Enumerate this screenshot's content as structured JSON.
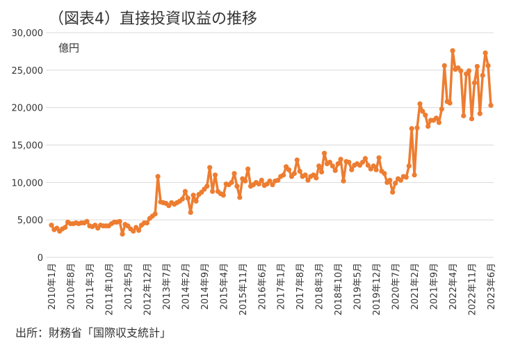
{
  "chart_data": {
    "type": "line",
    "title": "（図表4）直接投資収益の推移",
    "y_axis_label": "億円",
    "source": "出所：財務省「国際収支統計」",
    "categories": [
      "2010年1月",
      null,
      null,
      null,
      null,
      null,
      null,
      "2010年8月",
      null,
      null,
      null,
      null,
      null,
      null,
      "2011年3月",
      null,
      null,
      null,
      null,
      null,
      null,
      "2011年10月",
      null,
      null,
      null,
      null,
      null,
      null,
      "2012年5月",
      null,
      null,
      null,
      null,
      null,
      null,
      "2012年12月",
      null,
      null,
      null,
      null,
      null,
      null,
      "2013年7月",
      null,
      null,
      null,
      null,
      null,
      null,
      "2014年2月",
      null,
      null,
      null,
      null,
      null,
      null,
      "2014年9月",
      null,
      null,
      null,
      null,
      null,
      null,
      "2015年4月",
      null,
      null,
      null,
      null,
      null,
      null,
      "2015年11月",
      null,
      null,
      null,
      null,
      null,
      null,
      "2016年6月",
      null,
      null,
      null,
      null,
      null,
      null,
      "2017年1月",
      null,
      null,
      null,
      null,
      null,
      null,
      "2017年8月",
      null,
      null,
      null,
      null,
      null,
      null,
      "2018年3月",
      null,
      null,
      null,
      null,
      null,
      null,
      "2018年10月",
      null,
      null,
      null,
      null,
      null,
      null,
      "2019年5月",
      null,
      null,
      null,
      null,
      null,
      null,
      "2019年12月",
      null,
      null,
      null,
      null,
      null,
      null,
      "2020年7月",
      null,
      null,
      null,
      null,
      null,
      null,
      "2021年2月",
      null,
      null,
      null,
      null,
      null,
      null,
      "2021年9月",
      null,
      null,
      null,
      null,
      null,
      null,
      "2022年4月",
      null,
      null,
      null,
      null,
      null,
      null,
      "2022年11月",
      null,
      null,
      null,
      null,
      null,
      null,
      "2023年6月"
    ],
    "series": [
      {
        "name": "直接投資収益",
        "color": "#ed7d31",
        "values": [
          4300,
          3700,
          3900,
          3500,
          3800,
          4000,
          4700,
          4500,
          4500,
          4600,
          4500,
          4600,
          4600,
          4800,
          4200,
          4100,
          4300,
          3900,
          4300,
          4200,
          4200,
          4200,
          4500,
          4700,
          4700,
          4800,
          3100,
          4400,
          4200,
          3800,
          3500,
          4000,
          3600,
          4300,
          4600,
          4600,
          5200,
          5500,
          5800,
          10800,
          7400,
          7300,
          7200,
          6900,
          7300,
          7100,
          7300,
          7500,
          7800,
          8800,
          7900,
          6000,
          8300,
          7500,
          8400,
          8700,
          9100,
          9500,
          12000,
          8800,
          11000,
          8800,
          8500,
          8300,
          9800,
          9700,
          10000,
          11200,
          9500,
          8000,
          10500,
          10200,
          11800,
          9500,
          9700,
          10000,
          9800,
          10300,
          9600,
          9800,
          10200,
          9700,
          10200,
          10300,
          10800,
          11000,
          12100,
          11700,
          10800,
          11200,
          13000,
          11500,
          10800,
          11000,
          10300,
          10800,
          11000,
          10600,
          12200,
          11400,
          13900,
          12500,
          12700,
          12200,
          11600,
          12500,
          13100,
          10200,
          12800,
          12700,
          11700,
          12300,
          12500,
          12300,
          12700,
          13200,
          12300,
          11800,
          12200,
          11700,
          13300,
          11500,
          11200,
          10000,
          10300,
          8700,
          9900,
          10500,
          10300,
          10800,
          10700,
          12200,
          17200,
          11000,
          17300,
          20500,
          19500,
          19000,
          17500,
          18300,
          18300,
          18600,
          18000,
          19800,
          25600,
          20800,
          20600,
          27600,
          25100,
          25300,
          24900,
          18900,
          24500,
          24900,
          18500,
          23300,
          25500,
          19200,
          24300,
          27300,
          25600,
          20300
        ]
      }
    ],
    "ylim": [
      0,
      30000
    ],
    "yticks": [
      0,
      {
        "value": 5000,
        "label": "5,000"
      },
      {
        "value": 10000,
        "label": "10,000"
      },
      {
        "value": 15000,
        "label": "15,000"
      },
      {
        "value": 20000,
        "label": "20,000"
      },
      {
        "value": 25000,
        "label": "25,000"
      },
      {
        "value": 30000,
        "label": "30,000"
      }
    ],
    "grid": true
  }
}
